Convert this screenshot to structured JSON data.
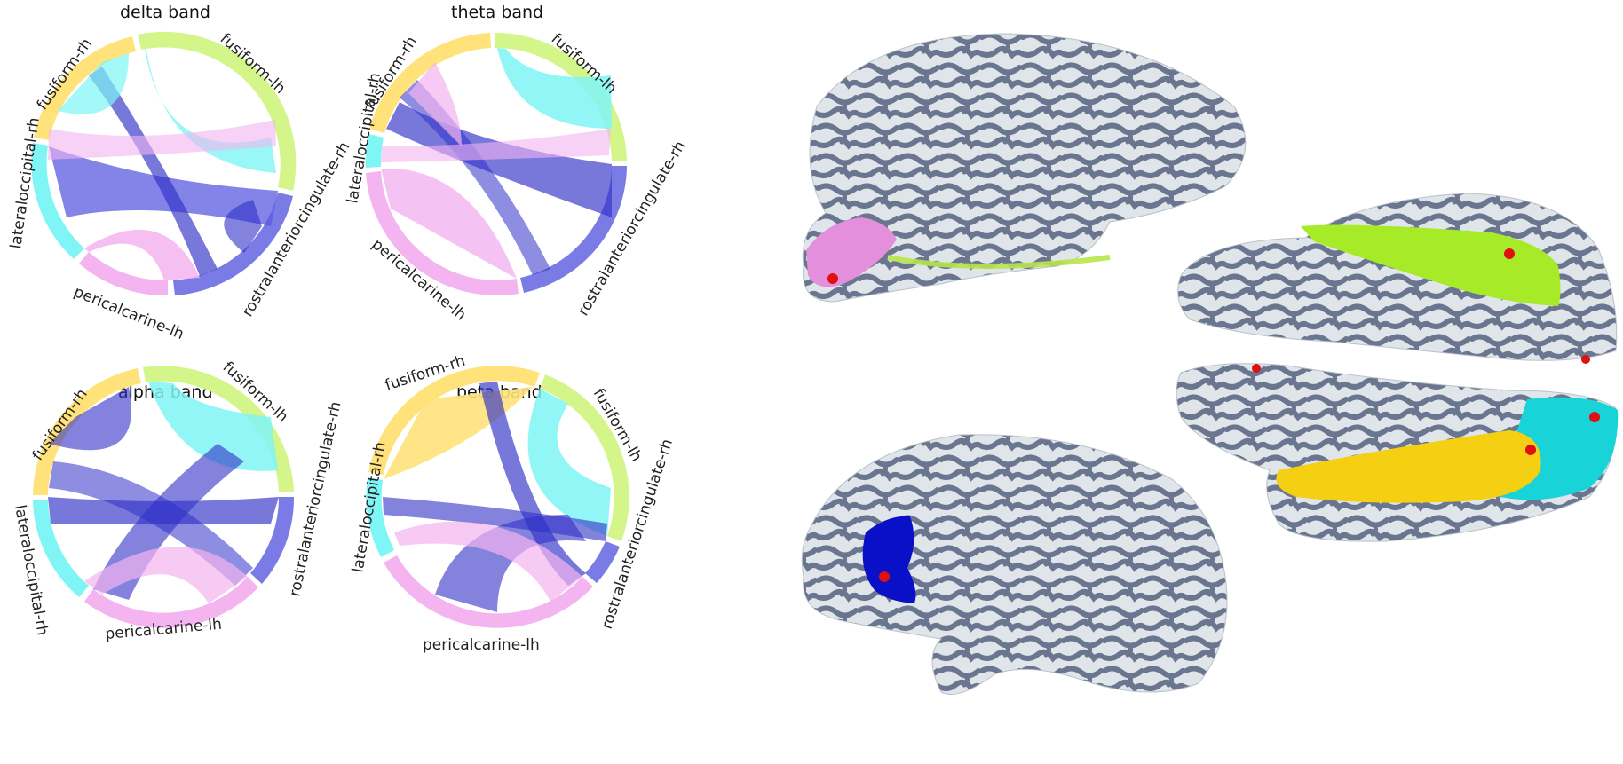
{
  "panels": [
    {
      "title": "delta band",
      "labels": {
        "fusiform_rh": "fusiform-rh",
        "fusiform_lh": "fusiform-lh",
        "lateraloccipital_rh": "lateraloccipital-rh",
        "pericalcarine_lh": "pericalcarine-lh",
        "rostralanteriorcingulate_rh": "rostralanteriorcingulate-rh"
      }
    },
    {
      "title": "theta band",
      "labels": {
        "fusiform_rh": "fusiform-rh",
        "fusiform_lh": "fusiform-lh",
        "lateraloccipital_rh": "lateraloccipital-rh",
        "pericalcarine_lh": "pericalcarine-lh",
        "rostralanteriorcingulate_rh": "rostralanteriorcingulate-rh"
      }
    },
    {
      "title": "alpha band",
      "labels": {
        "fusiform_rh": "fusiform-rh",
        "fusiform_lh": "fusiform-lh",
        "lateraloccipital_rh": "lateraloccipital-rh",
        "pericalcarine_lh": "pericalcarine-lh",
        "rostralanteriorcingulate_rh": "rostralanteriorcingulate-rh"
      }
    },
    {
      "title": "beta band",
      "labels": {
        "fusiform_rh": "fusiform-rh",
        "fusiform_lh": "fusiform-lh",
        "lateraloccipital_rh": "lateraloccipital-rh",
        "pericalcarine_lh": "pericalcarine-lh",
        "rostralanteriorcingulate_rh": "rostralanteriorcingulate-rh"
      }
    }
  ],
  "colors": {
    "fusiform_lh": "#d4f58a",
    "fusiform_rh": "#ffe27a",
    "lateraloccipital_rh": "#7ff5f5",
    "pericalcarine_lh": "#f3b4f0",
    "rostralanteriorcingulate_rh": "#5a5ae0",
    "brain_gyri": "#dfe5e8",
    "brain_sulci": "#6a7590",
    "marker": "#e01010"
  }
}
